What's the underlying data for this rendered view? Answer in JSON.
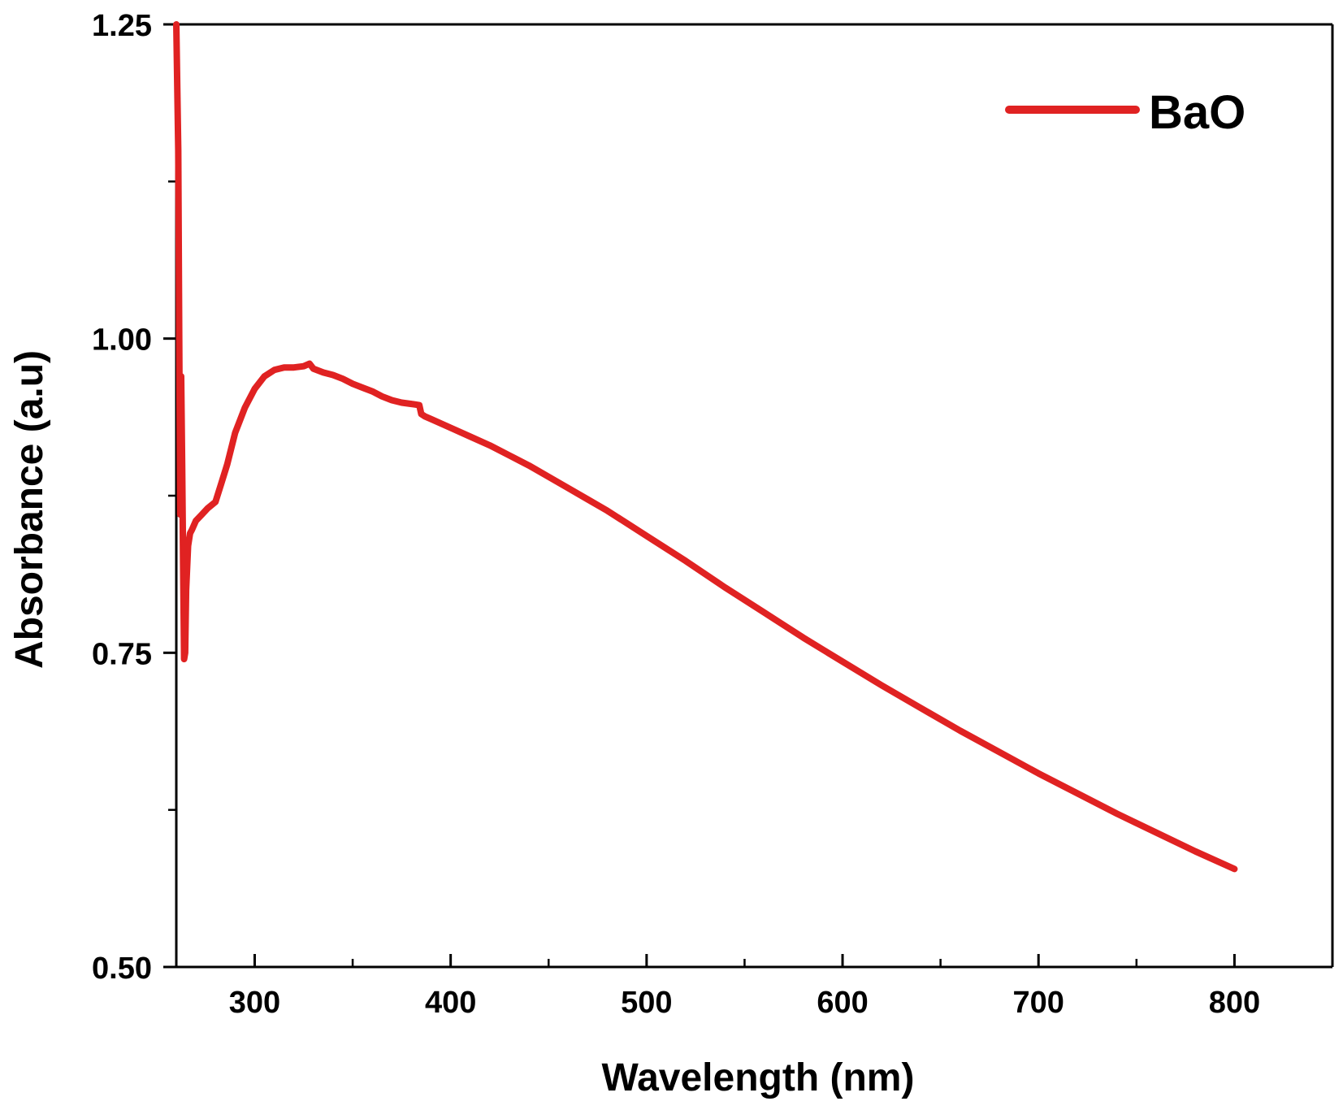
{
  "chart_data": {
    "type": "line",
    "xlabel": "Wavelength (nm)",
    "ylabel": "Absorbance (a.u)",
    "xlim": [
      260,
      850
    ],
    "ylim": [
      0.5,
      1.25
    ],
    "x_ticks": [
      300,
      400,
      500,
      600,
      700,
      800
    ],
    "x_tick_labels": [
      "300",
      "400",
      "500",
      "600",
      "700",
      "800"
    ],
    "x_minor_ticks": [
      350,
      450,
      550,
      650,
      750
    ],
    "y_ticks": [
      0.5,
      0.75,
      1.0,
      1.25
    ],
    "y_tick_labels": [
      "0.50",
      "0.75",
      "1.00",
      "1.25"
    ],
    "y_minor_ticks": [
      0.625,
      0.875,
      1.125
    ],
    "grid": false,
    "legend_position": "top-right",
    "series": [
      {
        "name": "BaO",
        "color": "#e02222",
        "x": [
          260,
          261,
          261.5,
          262,
          262.5,
          263,
          263.5,
          264,
          264.5,
          265,
          266,
          267,
          268,
          270,
          273,
          276,
          280,
          283,
          286,
          290,
          295,
          300,
          305,
          310,
          315,
          320,
          325,
          328,
          330,
          335,
          340,
          345,
          350,
          355,
          360,
          365,
          370,
          375,
          380,
          384,
          385,
          387,
          390,
          400,
          410,
          420,
          430,
          440,
          450,
          460,
          470,
          480,
          490,
          500,
          520,
          540,
          560,
          580,
          600,
          620,
          640,
          660,
          680,
          700,
          720,
          740,
          760,
          780,
          800
        ],
        "y": [
          1.25,
          1.15,
          1.0,
          0.86,
          0.97,
          0.9,
          0.82,
          0.745,
          0.75,
          0.8,
          0.835,
          0.845,
          0.848,
          0.855,
          0.86,
          0.865,
          0.87,
          0.885,
          0.9,
          0.925,
          0.945,
          0.96,
          0.97,
          0.975,
          0.977,
          0.977,
          0.978,
          0.98,
          0.976,
          0.973,
          0.971,
          0.968,
          0.964,
          0.961,
          0.958,
          0.954,
          0.951,
          0.949,
          0.948,
          0.947,
          0.94,
          0.938,
          0.936,
          0.929,
          0.922,
          0.915,
          0.907,
          0.899,
          0.89,
          0.881,
          0.872,
          0.863,
          0.853,
          0.843,
          0.823,
          0.802,
          0.782,
          0.762,
          0.743,
          0.724,
          0.706,
          0.688,
          0.671,
          0.654,
          0.638,
          0.622,
          0.607,
          0.592,
          0.578
        ]
      }
    ]
  }
}
